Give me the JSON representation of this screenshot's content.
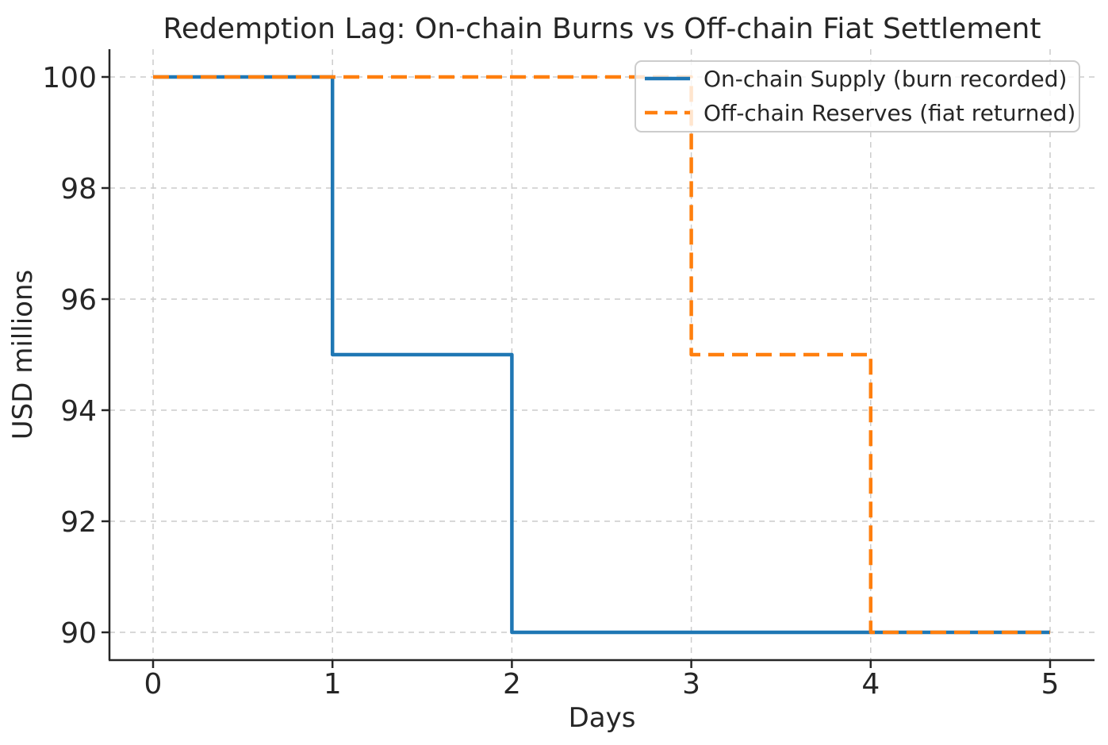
{
  "figure": {
    "background": "#ffffff",
    "text_color": "#262626",
    "spine_color": "#262626"
  },
  "chart_data": {
    "type": "line",
    "step_mode": "steps-post",
    "title": "Redemption Lag: On-chain Burns vs Off-chain Fiat Settlement",
    "xlabel": "Days",
    "ylabel": "USD millions",
    "x": [
      0,
      1,
      2,
      3,
      4,
      5
    ],
    "series": [
      {
        "name": "On-chain Supply (burn recorded)",
        "color": "#1f77b4",
        "line_style": "solid",
        "values": [
          100,
          95,
          90,
          90,
          90,
          90
        ]
      },
      {
        "name": "Off-chain Reserves (fiat returned)",
        "color": "#ff7f0e",
        "line_style": "dashed",
        "values": [
          100,
          100,
          100,
          95,
          90,
          90
        ]
      }
    ],
    "x_ticks": [
      0,
      1,
      2,
      3,
      4,
      5
    ],
    "y_ticks": [
      90,
      92,
      94,
      96,
      98,
      100
    ],
    "xlim": [
      -0.25,
      5.25
    ],
    "ylim": [
      89,
      101
    ],
    "grid": true,
    "grid_color": "#cccccc",
    "legend_position": "upper right",
    "legend_background": "#ffffff",
    "legend_border_color": "#cccccc"
  }
}
